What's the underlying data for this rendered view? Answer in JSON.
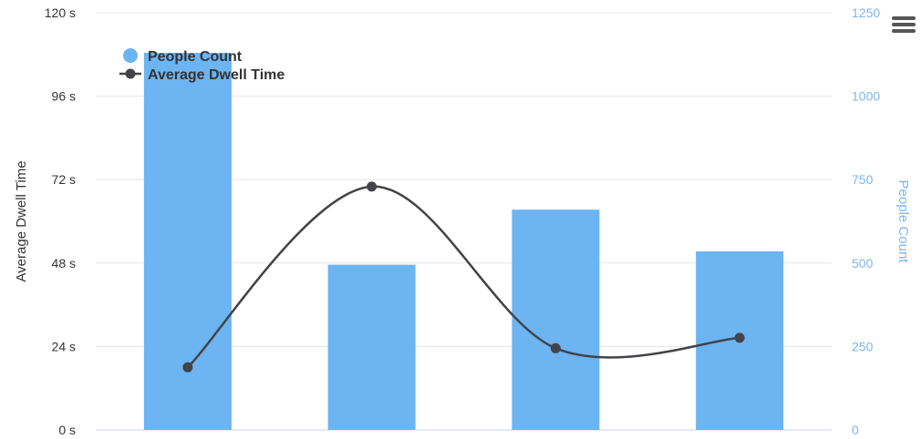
{
  "chart_data": {
    "type": "bar",
    "categories": [
      "",
      "",
      "",
      ""
    ],
    "series": [
      {
        "name": "People Count",
        "type": "bar",
        "axis": "right",
        "values": [
          1130,
          495,
          660,
          535
        ]
      },
      {
        "name": "Average Dwell Time",
        "type": "line",
        "axis": "left",
        "values": [
          18,
          70,
          23.5,
          26.5
        ]
      }
    ],
    "left_axis": {
      "label": "Average Dwell Time",
      "min": 0,
      "max": 120,
      "ticks": [
        "0 s",
        "24 s",
        "48 s",
        "72 s",
        "96 s",
        "120 s"
      ]
    },
    "right_axis": {
      "label": "People Count",
      "min": 0,
      "max": 1250,
      "ticks": [
        "0",
        "250",
        "500",
        "750",
        "1000",
        "1250"
      ]
    },
    "grid": true,
    "legend_position": "top-left",
    "colors": {
      "bar": "#6cb4f2",
      "line": "#434348",
      "right_axis_text": "#7cb5ec",
      "grid": "#e6e6e6",
      "axis_text": "#333333"
    }
  },
  "toolbar": {
    "menu_icon": "hamburger-menu-icon"
  }
}
